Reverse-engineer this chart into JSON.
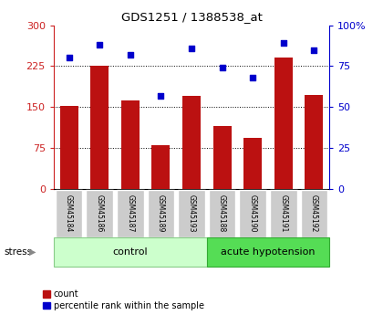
{
  "title": "GDS1251 / 1388538_at",
  "samples": [
    "GSM45184",
    "GSM45186",
    "GSM45187",
    "GSM45189",
    "GSM45193",
    "GSM45188",
    "GSM45190",
    "GSM45191",
    "GSM45192"
  ],
  "bar_values": [
    152,
    225,
    163,
    80,
    170,
    115,
    93,
    240,
    172
  ],
  "dot_values": [
    80,
    88,
    82,
    57,
    86,
    74,
    68,
    89,
    85
  ],
  "groups": [
    {
      "label": "control",
      "start": 0,
      "end": 5,
      "color": "#ccffcc",
      "edge": "#88cc88"
    },
    {
      "label": "acute hypotension",
      "start": 5,
      "end": 9,
      "color": "#55dd55",
      "edge": "#33aa33"
    }
  ],
  "stress_label": "stress",
  "bar_color": "#bb1111",
  "dot_color": "#0000cc",
  "left_axis_color": "#cc2222",
  "right_axis_color": "#0000cc",
  "ylim_left": [
    0,
    300
  ],
  "ylim_right": [
    0,
    100
  ],
  "yticks_left": [
    0,
    75,
    150,
    225,
    300
  ],
  "yticks_right": [
    0,
    25,
    50,
    75,
    100
  ],
  "ytick_right_labels": [
    "0",
    "25",
    "50",
    "75",
    "100%"
  ],
  "grid_lines": [
    75,
    150,
    225
  ],
  "tick_label_color": "#bbbbbb",
  "n_samples": 9,
  "control_count": 5,
  "acute_count": 4
}
